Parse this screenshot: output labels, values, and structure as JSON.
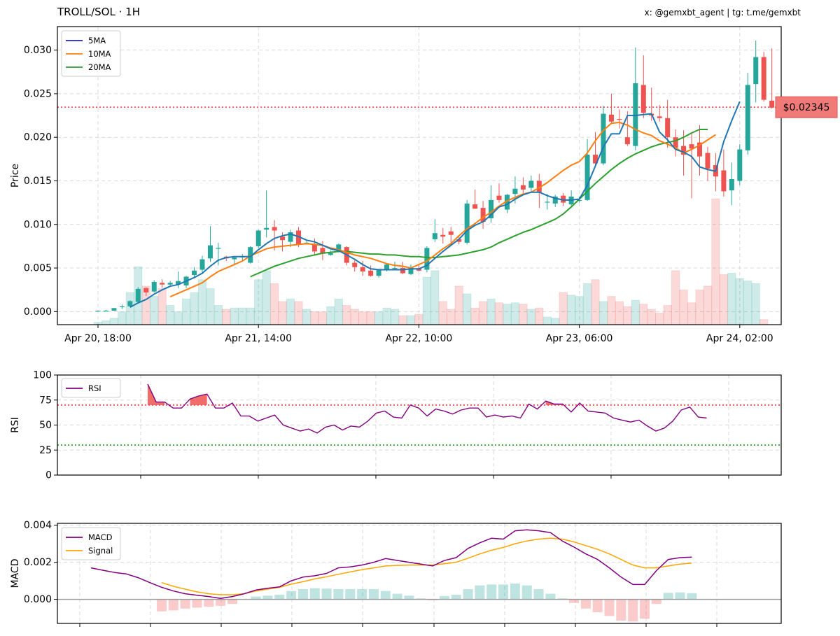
{
  "header": {
    "title": "TROLL/SOL · 1H",
    "credit": "x: @gemxbt_agent | tg: t.me/gemxbt"
  },
  "colors": {
    "up": "#26a69a",
    "down": "#ef5350",
    "ma5": "#1f77b4",
    "ma10": "#ff7f0e",
    "ma20": "#2ca02c",
    "rsi": "#800080",
    "macd": "#800080",
    "signal": "#ffa500",
    "price_line": "#ff4444",
    "oversold": "#2ca02c"
  },
  "current_price": {
    "value": 0.02345,
    "label": "$0.02345"
  },
  "chart_data": [
    {
      "type": "candlestick",
      "ylabel": "Price",
      "ylim": [
        -0.0015,
        0.0327
      ],
      "yticks": [
        0,
        0.005,
        0.01,
        0.015,
        0.02,
        0.025,
        0.03
      ],
      "ytick_labels": [
        "0.000",
        "0.005",
        "0.010",
        "0.015",
        "0.020",
        "0.025",
        "0.030"
      ],
      "xlim": [
        -5,
        80
      ],
      "xticks": [
        0,
        20,
        40,
        60,
        80
      ],
      "xtick_labels": [
        "Apr 20, 18:00",
        "Apr 21, 14:00",
        "Apr 22, 10:00",
        "Apr 23, 06:00",
        "Apr 24, 02:00"
      ],
      "x_start": "Apr 20, 18:00",
      "interval": "1H",
      "legend": [
        "5MA",
        "10MA",
        "20MA"
      ],
      "legend_position": "top-left",
      "grid": true,
      "candles": [
        [
          0.0001,
          0.0001,
          0.0001,
          0.0001
        ],
        [
          0.0001,
          0.0002,
          0.0001,
          0.0001
        ],
        [
          0.0001,
          0.0004,
          0.0001,
          0.0004
        ],
        [
          0.0005,
          0.0008,
          0.0003,
          0.0006
        ],
        [
          0.0006,
          0.0013,
          0.0005,
          0.0012
        ],
        [
          0.0011,
          0.0028,
          0.0009,
          0.0026
        ],
        [
          0.0027,
          0.0028,
          0.0018,
          0.0022
        ],
        [
          0.0023,
          0.0036,
          0.0022,
          0.0034
        ],
        [
          0.0033,
          0.0037,
          0.0027,
          0.0031
        ],
        [
          0.0031,
          0.0035,
          0.0029,
          0.0033
        ],
        [
          0.0031,
          0.0046,
          0.0027,
          0.0035
        ],
        [
          0.003,
          0.0041,
          0.0027,
          0.004
        ],
        [
          0.0042,
          0.0051,
          0.0039,
          0.0047
        ],
        [
          0.0048,
          0.0064,
          0.0043,
          0.006
        ],
        [
          0.0061,
          0.0098,
          0.0057,
          0.0076
        ],
        [
          0.0072,
          0.0079,
          0.0053,
          0.0073
        ],
        [
          0.0063,
          0.0064,
          0.0058,
          0.0061
        ],
        [
          0.006,
          0.0064,
          0.0053,
          0.0062
        ],
        [
          0.0063,
          0.0066,
          0.0058,
          0.0063
        ],
        [
          0.0056,
          0.0075,
          0.0055,
          0.0074
        ],
        [
          0.0075,
          0.0094,
          0.0073,
          0.0093
        ],
        [
          0.0094,
          0.0139,
          0.0085,
          0.0096
        ],
        [
          0.0097,
          0.0105,
          0.007,
          0.0093
        ],
        [
          0.0086,
          0.0091,
          0.0069,
          0.0082
        ],
        [
          0.008,
          0.0094,
          0.0074,
          0.0091
        ],
        [
          0.0093,
          0.0097,
          0.0074,
          0.0077
        ],
        [
          0.0079,
          0.0081,
          0.0077,
          0.0079
        ],
        [
          0.0077,
          0.0084,
          0.0065,
          0.0069
        ],
        [
          0.0073,
          0.0081,
          0.0059,
          0.0067
        ],
        [
          0.0065,
          0.007,
          0.0064,
          0.0067
        ],
        [
          0.0071,
          0.0078,
          0.0068,
          0.0077
        ],
        [
          0.0074,
          0.0075,
          0.0053,
          0.0056
        ],
        [
          0.0056,
          0.0059,
          0.0046,
          0.0051
        ],
        [
          0.0051,
          0.0058,
          0.0041,
          0.0046
        ],
        [
          0.0047,
          0.0053,
          0.004,
          0.0041
        ],
        [
          0.0041,
          0.0048,
          0.0039,
          0.0048
        ],
        [
          0.0048,
          0.0055,
          0.0046,
          0.0054
        ],
        [
          0.005,
          0.0057,
          0.0048,
          0.005
        ],
        [
          0.005,
          0.0057,
          0.0043,
          0.0044
        ],
        [
          0.0043,
          0.0054,
          0.0042,
          0.0051
        ],
        [
          0.0049,
          0.0053,
          0.0046,
          0.0047
        ],
        [
          0.0048,
          0.0075,
          0.0045,
          0.0073
        ],
        [
          0.0083,
          0.0106,
          0.008,
          0.009
        ],
        [
          0.0088,
          0.0096,
          0.0078,
          0.0086
        ],
        [
          0.0092,
          0.0097,
          0.0076,
          0.0088
        ],
        [
          0.0083,
          0.0087,
          0.0077,
          0.008
        ],
        [
          0.0079,
          0.0128,
          0.0077,
          0.0124
        ],
        [
          0.0123,
          0.014,
          0.0118,
          0.0118
        ],
        [
          0.0119,
          0.0127,
          0.0095,
          0.0103
        ],
        [
          0.0107,
          0.0145,
          0.0102,
          0.0128
        ],
        [
          0.0133,
          0.0147,
          0.0125,
          0.0128
        ],
        [
          0.0117,
          0.0135,
          0.0113,
          0.0134
        ],
        [
          0.0135,
          0.0155,
          0.0124,
          0.0141
        ],
        [
          0.0145,
          0.0154,
          0.0136,
          0.014
        ],
        [
          0.0142,
          0.0156,
          0.0138,
          0.015
        ],
        [
          0.015,
          0.0158,
          0.0119,
          0.0137
        ],
        [
          0.0126,
          0.0135,
          0.0117,
          0.0126
        ],
        [
          0.0124,
          0.0134,
          0.012,
          0.0132
        ],
        [
          0.0133,
          0.0136,
          0.0121,
          0.0125
        ],
        [
          0.0123,
          0.0139,
          0.0121,
          0.0132
        ],
        [
          0.0127,
          0.0132,
          0.0125,
          0.0128
        ],
        [
          0.0128,
          0.0198,
          0.0127,
          0.018
        ],
        [
          0.018,
          0.0206,
          0.0168,
          0.017
        ],
        [
          0.017,
          0.0236,
          0.0168,
          0.0227
        ],
        [
          0.0226,
          0.025,
          0.0215,
          0.0218
        ],
        [
          0.0221,
          0.0232,
          0.021,
          0.022
        ],
        [
          0.02,
          0.023,
          0.019,
          0.0192
        ],
        [
          0.019,
          0.0303,
          0.0185,
          0.0262
        ],
        [
          0.026,
          0.0294,
          0.0222,
          0.0228
        ],
        [
          0.0227,
          0.0257,
          0.0219,
          0.0225
        ],
        [
          0.0224,
          0.0237,
          0.0218,
          0.0222
        ],
        [
          0.0222,
          0.0243,
          0.0188,
          0.02
        ],
        [
          0.02,
          0.0209,
          0.0178,
          0.0188
        ],
        [
          0.019,
          0.0208,
          0.0156,
          0.018
        ],
        [
          0.0192,
          0.0204,
          0.013,
          0.0187
        ],
        [
          0.0194,
          0.0214,
          0.0156,
          0.0178
        ],
        [
          0.0182,
          0.0189,
          0.015,
          0.0164
        ],
        [
          0.0168,
          0.0182,
          0.0138,
          0.0155
        ],
        [
          0.0162,
          0.0186,
          0.0132,
          0.0138
        ],
        [
          0.0139,
          0.0171,
          0.0122,
          0.0152
        ],
        [
          0.015,
          0.0192,
          0.0145,
          0.0186
        ],
        [
          0.0185,
          0.0274,
          0.018,
          0.026
        ],
        [
          0.0261,
          0.0311,
          0.024,
          0.0292
        ],
        [
          0.0292,
          0.0298,
          0.0241,
          0.0243
        ],
        [
          0.0242,
          0.0302,
          0.0233,
          0.0234
        ]
      ],
      "ma5": [
        null,
        null,
        null,
        null,
        0.0005,
        0.001,
        0.0014,
        0.002,
        0.0025,
        0.0029,
        0.0031,
        0.0035,
        0.0039,
        0.0044,
        0.0052,
        0.0059,
        0.0062,
        0.0063,
        0.0063,
        0.0063,
        0.0071,
        0.0078,
        0.0084,
        0.0087,
        0.0089,
        0.0086,
        0.0082,
        0.008,
        0.0076,
        0.0072,
        0.007,
        0.0065,
        0.006,
        0.0054,
        0.0049,
        0.0048,
        0.0048,
        0.0048,
        0.0048,
        0.0049,
        0.0049,
        0.0053,
        0.0061,
        0.0069,
        0.0076,
        0.0083,
        0.0093,
        0.0099,
        0.0103,
        0.0111,
        0.012,
        0.0123,
        0.0129,
        0.0134,
        0.0137,
        0.0137,
        0.0133,
        0.013,
        0.0128,
        0.0128,
        0.0129,
        0.0145,
        0.0167,
        0.0189,
        0.0204,
        0.0204,
        0.0225,
        0.0225,
        0.0226,
        0.0227,
        0.0206,
        0.0197,
        0.0186,
        0.0183,
        0.0178,
        0.0166,
        0.0163,
        0.0161,
        0.0195,
        0.0219,
        0.0241
      ],
      "ma10": [
        null,
        null,
        null,
        null,
        null,
        null,
        null,
        null,
        null,
        0.0017,
        0.0021,
        0.0025,
        0.0029,
        0.0033,
        0.004,
        0.0046,
        0.005,
        0.0054,
        0.0058,
        0.0064,
        0.0068,
        0.0072,
        0.0074,
        0.0075,
        0.0076,
        0.0077,
        0.0078,
        0.0077,
        0.0076,
        0.0073,
        0.0071,
        0.0068,
        0.0065,
        0.0063,
        0.0061,
        0.0058,
        0.0055,
        0.0053,
        0.0052,
        0.005,
        0.0054,
        0.0058,
        0.0065,
        0.0072,
        0.0078,
        0.0087,
        0.0095,
        0.0101,
        0.0108,
        0.0114,
        0.0121,
        0.0127,
        0.0131,
        0.0135,
        0.0137,
        0.0142,
        0.0148,
        0.0155,
        0.0162,
        0.0168,
        0.0172,
        0.0182,
        0.0196,
        0.0208,
        0.0216,
        0.0217,
        0.0214,
        0.0209,
        0.0205,
        0.0202,
        0.0196,
        0.0192,
        0.0188,
        0.0182,
        0.0186,
        0.0191,
        0.0197,
        0.0203
      ],
      "ma20": [
        null,
        null,
        null,
        null,
        null,
        null,
        null,
        null,
        null,
        null,
        null,
        null,
        null,
        null,
        null,
        null,
        null,
        null,
        null,
        0.004,
        0.0044,
        0.0048,
        0.0052,
        0.0055,
        0.0058,
        0.0061,
        0.0063,
        0.0065,
        0.0067,
        0.0068,
        0.0069,
        0.0069,
        0.0068,
        0.0067,
        0.0066,
        0.0066,
        0.0065,
        0.0065,
        0.0064,
        0.0063,
        0.0063,
        0.0062,
        0.0062,
        0.0063,
        0.0064,
        0.0065,
        0.0067,
        0.0069,
        0.0071,
        0.0074,
        0.0079,
        0.0083,
        0.0087,
        0.0091,
        0.0094,
        0.0098,
        0.0102,
        0.0106,
        0.0112,
        0.012,
        0.0129,
        0.0138,
        0.0147,
        0.0155,
        0.0163,
        0.017,
        0.0176,
        0.0181,
        0.0185,
        0.0189,
        0.0192,
        0.0194,
        0.0196,
        0.02,
        0.0205,
        0.0209,
        0.0209
      ],
      "volume_relative": [
        0.02,
        0.03,
        0.05,
        0.1,
        0.25,
        0.45,
        0.3,
        0.22,
        0.28,
        0.15,
        0.1,
        0.2,
        0.25,
        0.35,
        0.28,
        0.15,
        0.12,
        0.13,
        0.13,
        0.13,
        0.35,
        0.42,
        0.32,
        0.18,
        0.2,
        0.18,
        0.12,
        0.1,
        0.1,
        0.14,
        0.2,
        0.15,
        0.12,
        0.1,
        0.1,
        0.1,
        0.13,
        0.12,
        0.07,
        0.07,
        0.08,
        0.37,
        0.42,
        0.18,
        0.12,
        0.3,
        0.24,
        0.13,
        0.18,
        0.2,
        0.17,
        0.16,
        0.17,
        0.16,
        0.12,
        0.13,
        0.06,
        0.05,
        0.25,
        0.23,
        0.22,
        0.32,
        0.35,
        0.18,
        0.22,
        0.18,
        0.14,
        0.19,
        0.16,
        0.12,
        0.09,
        0.15,
        0.42,
        0.27,
        0.17,
        0.27,
        0.3,
        0.98,
        0.39,
        0.4,
        0.36,
        0.34,
        0.32,
        0.04
      ]
    },
    {
      "type": "line",
      "ylabel": "RSI",
      "ylim": [
        0,
        100
      ],
      "yticks": [
        0,
        25,
        50,
        75,
        100
      ],
      "ytick_labels": [
        "0",
        "25",
        "50",
        "75",
        "100"
      ],
      "overbought": 70,
      "oversold": 30,
      "legend": [
        "RSI"
      ],
      "legend_position": "top-left",
      "series": [
        {
          "name": "RSI",
          "values": [
            null,
            null,
            null,
            null,
            null,
            null,
            null,
            null,
            null,
            null,
            91,
            73,
            73,
            67,
            67,
            76,
            79,
            81,
            67,
            67,
            72,
            59,
            59,
            54,
            57,
            60,
            50,
            47,
            44,
            46,
            42,
            48,
            50,
            45,
            49,
            48,
            54,
            62,
            64,
            58,
            57,
            70,
            67,
            59,
            66,
            64,
            61,
            65,
            67,
            67,
            58,
            60,
            58,
            59,
            57,
            71,
            66,
            74,
            71,
            71,
            63,
            72,
            64,
            63,
            62,
            57,
            55,
            53,
            55,
            49,
            44,
            47,
            54,
            65,
            68,
            58,
            57
          ]
        }
      ]
    },
    {
      "type": "line",
      "ylabel": "MACD",
      "ylim": [
        -0.0013,
        0.0041
      ],
      "yticks": [
        0,
        0.002,
        0.004
      ],
      "ytick_labels": [
        "0.000",
        "0.002",
        "0.004"
      ],
      "legend": [
        "MACD",
        "Signal"
      ],
      "legend_position": "top-left",
      "series": [
        {
          "name": "MACD",
          "values": [
            0.0017,
            0.00157,
            0.00145,
            0.00137,
            0.00117,
            0.0009,
            0.00065,
            0.00045,
            0.0003,
            0.00022,
            0.00015,
            5e-05,
            0.00015,
            0.0003,
            0.0005,
            0.0006,
            0.00067,
            0.001,
            0.0012,
            0.00127,
            0.0014,
            0.0017,
            0.00175,
            0.00185,
            0.002,
            0.0022,
            0.0021,
            0.002,
            0.0019,
            0.0018,
            0.0021,
            0.00225,
            0.00275,
            0.00305,
            0.0033,
            0.00325,
            0.0037,
            0.00375,
            0.0037,
            0.0036,
            0.00315,
            0.00282,
            0.00245,
            0.00215,
            0.0017,
            0.0012,
            0.0008,
            0.0008,
            0.00155,
            0.00215,
            0.00225,
            0.00228
          ]
        },
        {
          "name": "Signal",
          "values": [
            null,
            null,
            null,
            null,
            null,
            null,
            0.0009,
            0.0007,
            0.00055,
            0.0004,
            0.0003,
            0.00025,
            0.00025,
            0.0003,
            0.00045,
            0.00055,
            0.00065,
            0.00082,
            0.00095,
            0.0011,
            0.00122,
            0.00135,
            0.00148,
            0.0016,
            0.0017,
            0.0018,
            0.00183,
            0.00185,
            0.00185,
            0.00185,
            0.00192,
            0.002,
            0.00222,
            0.00245,
            0.00265,
            0.0028,
            0.003,
            0.00315,
            0.00325,
            0.0033,
            0.00325,
            0.0031,
            0.0029,
            0.0027,
            0.00245,
            0.00215,
            0.00185,
            0.0017,
            0.0017,
            0.0018,
            0.0019,
            0.00195
          ]
        },
        {
          "name": "Histogram",
          "values": [
            null,
            null,
            null,
            null,
            null,
            null,
            -0.00065,
            -0.0006,
            -0.0005,
            -0.00045,
            -0.0004,
            -0.00035,
            -0.00025,
            2e-05,
            0.00015,
            0.0002,
            0.00025,
            0.00045,
            0.00055,
            0.0006,
            0.00058,
            0.00055,
            0.00055,
            0.00055,
            0.00055,
            0.00045,
            0.0003,
            0.0002,
            5e-05,
            -5e-05,
            0.00018,
            0.00025,
            0.00055,
            0.00075,
            0.0008,
            0.0008,
            0.00085,
            0.00075,
            0.00055,
            0.0003,
            5e-05,
            -0.0002,
            -0.0005,
            -0.0007,
            -0.0009,
            -0.00115,
            -0.0012,
            -0.00105,
            -0.00025,
            0.00035,
            0.00037,
            0.00033
          ]
        }
      ]
    }
  ]
}
